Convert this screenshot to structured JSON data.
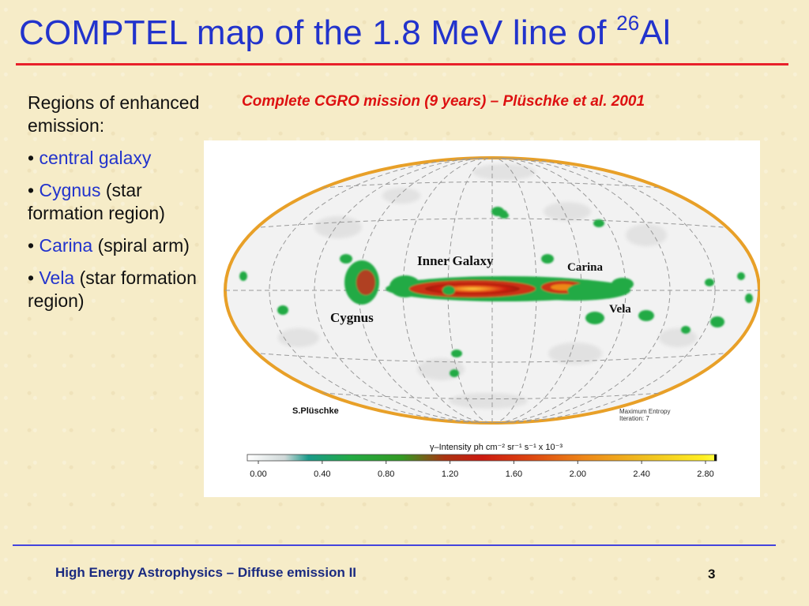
{
  "slide": {
    "title_main": "COMPTEL map of the 1.8 MeV line of ",
    "title_sup": "26",
    "title_tail": "Al",
    "subtitle": "Complete CGRO mission (9 years) – Plüschke et al. 2001",
    "left": {
      "intro": "Regions of enhanced emission:",
      "bullet": "•",
      "items": [
        {
          "name": "central galaxy",
          "desc": ""
        },
        {
          "name": "Cygnus",
          "desc": "(star formation region)"
        },
        {
          "name": "Carina",
          "desc": "(spiral arm)"
        },
        {
          "name": "Vela",
          "desc": "(star formation region)"
        }
      ]
    },
    "footer": "High Energy Astrophysics – Diffuse emission II",
    "page_number": "3"
  },
  "figure": {
    "labels": {
      "inner_galaxy": "Inner Galaxy",
      "carina": "Carina",
      "vela": "Vela",
      "cygnus": "Cygnus",
      "author": "S.Plüschke",
      "method_line1": "Maximum Entropy",
      "method_line2": "Iteration: 7"
    },
    "colorbar": {
      "label": "γ–Intensity ph cm⁻² sr⁻¹ s⁻¹   x 10⁻³",
      "ticks": [
        "0.00",
        "0.40",
        "0.80",
        "1.20",
        "1.60",
        "2.00",
        "2.40",
        "2.80"
      ]
    },
    "colors": {
      "title_blue": "#2233cc",
      "accent_red": "#e8202a",
      "frame_orange": "#e8a028"
    }
  }
}
